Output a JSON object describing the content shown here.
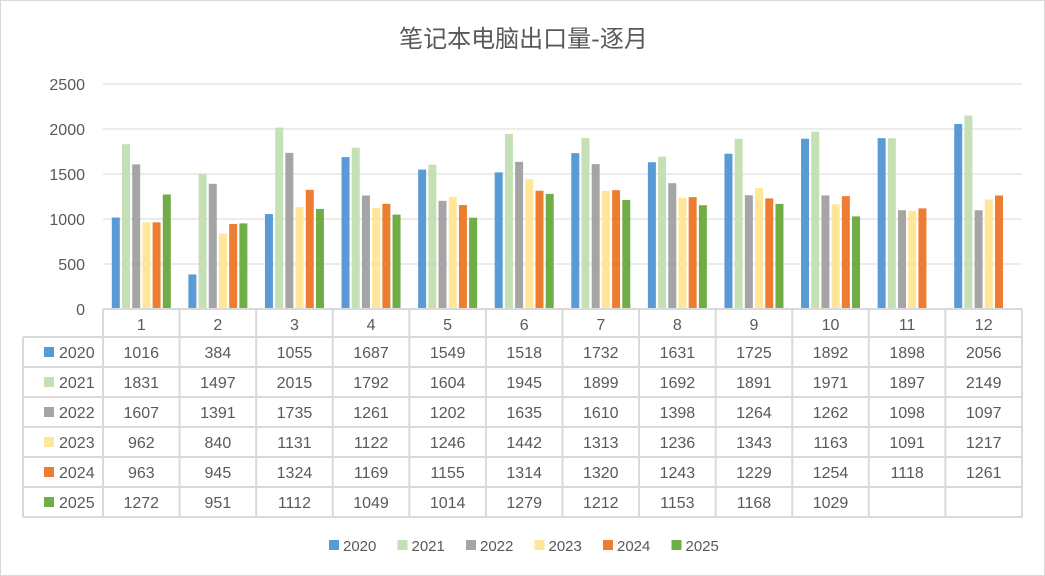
{
  "chart_data": {
    "type": "bar",
    "title": "笔记本电脑出口量-逐月",
    "xlabel": "",
    "ylabel": "",
    "ylim": [
      0,
      2500
    ],
    "yticks": [
      0,
      500,
      1000,
      1500,
      2000,
      2500
    ],
    "grid": true,
    "legend_position": "bottom",
    "categories": [
      "1",
      "2",
      "3",
      "4",
      "5",
      "6",
      "7",
      "8",
      "9",
      "10",
      "11",
      "12"
    ],
    "series": [
      {
        "name": "2020",
        "color": "#5B9BD5",
        "values": [
          1016,
          384,
          1055,
          1687,
          1549,
          1518,
          1732,
          1631,
          1725,
          1892,
          1898,
          2056
        ]
      },
      {
        "name": "2021",
        "color": "#C5E0B4",
        "values": [
          1831,
          1497,
          2015,
          1792,
          1604,
          1945,
          1899,
          1692,
          1891,
          1971,
          1897,
          2149
        ]
      },
      {
        "name": "2022",
        "color": "#A5A5A5",
        "values": [
          1607,
          1391,
          1735,
          1261,
          1202,
          1635,
          1610,
          1398,
          1264,
          1262,
          1098,
          1097
        ]
      },
      {
        "name": "2023",
        "color": "#FFE699",
        "values": [
          962,
          840,
          1131,
          1122,
          1246,
          1442,
          1313,
          1236,
          1343,
          1163,
          1091,
          1217
        ]
      },
      {
        "name": "2024",
        "color": "#ED7D31",
        "values": [
          963,
          945,
          1324,
          1169,
          1155,
          1314,
          1320,
          1243,
          1229,
          1254,
          1118,
          1261
        ]
      },
      {
        "name": "2025",
        "color": "#70AD47",
        "values": [
          1272,
          951,
          1112,
          1049,
          1014,
          1279,
          1212,
          1153,
          1168,
          1029,
          null,
          null
        ]
      }
    ]
  }
}
